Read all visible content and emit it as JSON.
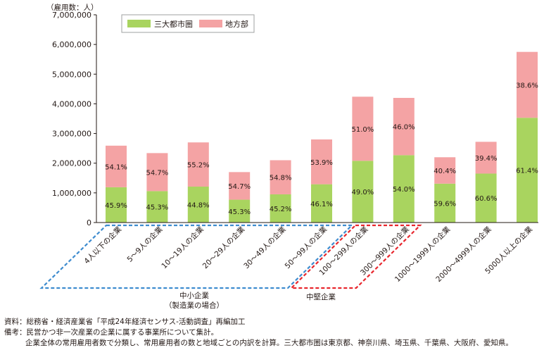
{
  "chart_data": {
    "type": "bar",
    "stacked": true,
    "unit_label": "（雇用数：人）",
    "ylim": [
      0,
      7000000
    ],
    "ytick_labels": [
      "0",
      "1,000,000",
      "2,000,000",
      "3,000,000",
      "4,000,000",
      "5,000,000",
      "6,000,000",
      "7,000,000"
    ],
    "categories": [
      "4人以下の企業",
      "5～9人の企業",
      "10～19人の企業",
      "20～29人の企業",
      "30～49人の企業",
      "50～99人の企業",
      "100～299人の企業",
      "300～999人の企業",
      "1000～1999人の企業",
      "2000～4999人の企業",
      "5000人以上の企業"
    ],
    "series": [
      {
        "name": "三大都市圏",
        "color": "#a9d45f",
        "values": [
          1190000,
          1060000,
          1210000,
          770000,
          950000,
          1290000,
          2080000,
          2270000,
          1310000,
          1650000,
          3530000
        ],
        "labels": [
          "45.9%",
          "45.3%",
          "44.8%",
          "45.3%",
          "45.2%",
          "46.1%",
          "49.0%",
          "54.0%",
          "59.6%",
          "60.6%",
          "61.4%"
        ]
      },
      {
        "name": "地方部",
        "color": "#f4a3a4",
        "values": [
          1400000,
          1280000,
          1490000,
          930000,
          1150000,
          1510000,
          2160000,
          1930000,
          890000,
          1070000,
          2220000
        ],
        "labels": [
          "54.1%",
          "54.7%",
          "55.2%",
          "54.7%",
          "54.8%",
          "53.9%",
          "51.0%",
          "46.0%",
          "40.4%",
          "39.4%",
          "38.6%"
        ]
      }
    ],
    "groups": [
      {
        "label_line1": "中小企業",
        "label_line2": "（製造業の場合）",
        "color": "#3e8ccf"
      },
      {
        "label_line1": "中堅企業",
        "label_line2": "",
        "color": "#e8262d"
      }
    ],
    "legend_position": "top-left",
    "grid": false
  },
  "notes": {
    "line1": "資料：総務省・経済産業省「平成24年経済センサス‐活動調査」再編加工",
    "line2": "備考：民営かつ非一次産業の企業に属する事業所について集計。",
    "line3": "企業全体の常用雇用者数で分類し、常用雇用者の数と地域ごとの内訳を計算。三大都市圏は東京都、神奈川県、埼玉県、千葉県、大阪府、愛知県。"
  }
}
